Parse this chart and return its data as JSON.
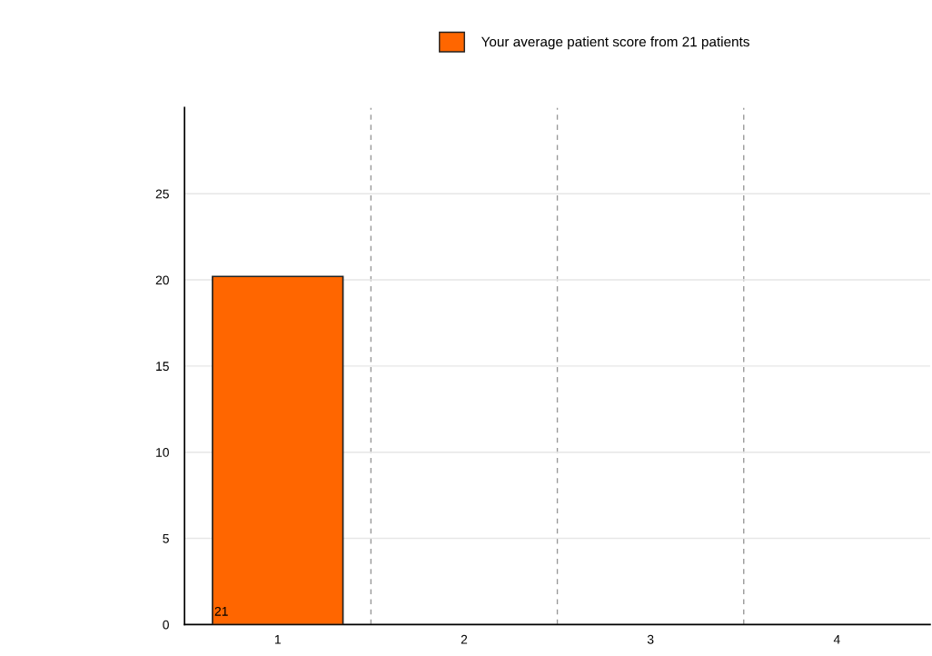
{
  "chart_data": {
    "type": "bar",
    "categories": [
      "1",
      "2",
      "3",
      "4"
    ],
    "series": [
      {
        "name": "Your average patient score from 21 patients",
        "color": "#ff6600",
        "values": [
          20.2,
          null,
          null,
          null
        ]
      }
    ],
    "annotations": [
      "21"
    ],
    "ylim": [
      0,
      30
    ],
    "yticks": [
      0,
      5,
      10,
      15,
      20,
      25
    ],
    "grid": true,
    "legend": "top"
  }
}
